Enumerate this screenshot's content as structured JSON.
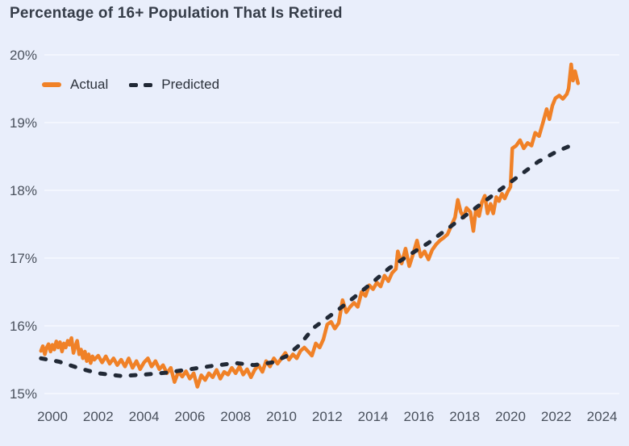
{
  "title": "Percentage of 16+ Population That Is Retired",
  "legend": {
    "actual_label": "Actual",
    "predicted_label": "Predicted"
  },
  "colors": {
    "background": "#e9eefb",
    "gridline": "#f3f6fe",
    "actual_line": "#f08127",
    "predicted_line": "#212936",
    "title_text": "#363d49",
    "tick_text": "#4a515d"
  },
  "chart_data": {
    "type": "line",
    "title": "Percentage of 16+ Population That Is Retired",
    "xlabel": "",
    "ylabel": "",
    "grid": "horizontal-only",
    "legend_position": "top-left-inside",
    "x_ticks": [
      2000,
      2002,
      2004,
      2006,
      2008,
      2010,
      2012,
      2014,
      2016,
      2018,
      2020,
      2022,
      2024
    ],
    "y_ticks": [
      15,
      16,
      17,
      18,
      19,
      20
    ],
    "y_tick_labels": [
      "15%",
      "16%",
      "17%",
      "18%",
      "19%",
      "20%"
    ],
    "xlim": [
      1999.2,
      2024.6
    ],
    "ylim": [
      14.75,
      20.25
    ],
    "series": [
      {
        "name": "Actual",
        "style": "solid",
        "color": "#f08127",
        "points": [
          [
            1999.5,
            15.63
          ],
          [
            1999.58,
            15.7
          ],
          [
            1999.67,
            15.58
          ],
          [
            1999.75,
            15.68
          ],
          [
            1999.83,
            15.73
          ],
          [
            1999.92,
            15.62
          ],
          [
            2000.0,
            15.72
          ],
          [
            2000.08,
            15.65
          ],
          [
            2000.17,
            15.77
          ],
          [
            2000.25,
            15.68
          ],
          [
            2000.33,
            15.76
          ],
          [
            2000.42,
            15.62
          ],
          [
            2000.5,
            15.74
          ],
          [
            2000.58,
            15.68
          ],
          [
            2000.67,
            15.78
          ],
          [
            2000.75,
            15.72
          ],
          [
            2000.83,
            15.82
          ],
          [
            2000.92,
            15.6
          ],
          [
            2001.0,
            15.7
          ],
          [
            2001.08,
            15.78
          ],
          [
            2001.17,
            15.58
          ],
          [
            2001.25,
            15.65
          ],
          [
            2001.33,
            15.52
          ],
          [
            2001.42,
            15.62
          ],
          [
            2001.5,
            15.48
          ],
          [
            2001.58,
            15.58
          ],
          [
            2001.67,
            15.45
          ],
          [
            2001.75,
            15.55
          ],
          [
            2001.83,
            15.5
          ],
          [
            2002.0,
            15.56
          ],
          [
            2002.17,
            15.46
          ],
          [
            2002.33,
            15.55
          ],
          [
            2002.5,
            15.44
          ],
          [
            2002.67,
            15.52
          ],
          [
            2002.83,
            15.42
          ],
          [
            2003.0,
            15.5
          ],
          [
            2003.17,
            15.4
          ],
          [
            2003.33,
            15.52
          ],
          [
            2003.5,
            15.38
          ],
          [
            2003.67,
            15.48
          ],
          [
            2003.83,
            15.36
          ],
          [
            2004.0,
            15.46
          ],
          [
            2004.17,
            15.52
          ],
          [
            2004.33,
            15.4
          ],
          [
            2004.5,
            15.48
          ],
          [
            2004.67,
            15.36
          ],
          [
            2004.83,
            15.42
          ],
          [
            2005.0,
            15.3
          ],
          [
            2005.17,
            15.38
          ],
          [
            2005.33,
            15.17
          ],
          [
            2005.5,
            15.32
          ],
          [
            2005.67,
            15.25
          ],
          [
            2005.83,
            15.33
          ],
          [
            2006.0,
            15.22
          ],
          [
            2006.17,
            15.3
          ],
          [
            2006.33,
            15.1
          ],
          [
            2006.5,
            15.27
          ],
          [
            2006.67,
            15.2
          ],
          [
            2006.83,
            15.3
          ],
          [
            2007.0,
            15.24
          ],
          [
            2007.17,
            15.35
          ],
          [
            2007.33,
            15.22
          ],
          [
            2007.5,
            15.32
          ],
          [
            2007.67,
            15.28
          ],
          [
            2007.83,
            15.38
          ],
          [
            2008.0,
            15.3
          ],
          [
            2008.17,
            15.4
          ],
          [
            2008.33,
            15.28
          ],
          [
            2008.5,
            15.36
          ],
          [
            2008.67,
            15.24
          ],
          [
            2008.83,
            15.35
          ],
          [
            2009.0,
            15.42
          ],
          [
            2009.17,
            15.32
          ],
          [
            2009.33,
            15.48
          ],
          [
            2009.5,
            15.4
          ],
          [
            2009.67,
            15.52
          ],
          [
            2009.83,
            15.44
          ],
          [
            2010.0,
            15.52
          ],
          [
            2010.17,
            15.6
          ],
          [
            2010.33,
            15.5
          ],
          [
            2010.5,
            15.58
          ],
          [
            2010.67,
            15.52
          ],
          [
            2010.83,
            15.63
          ],
          [
            2011.0,
            15.68
          ],
          [
            2011.17,
            15.62
          ],
          [
            2011.33,
            15.56
          ],
          [
            2011.5,
            15.74
          ],
          [
            2011.67,
            15.68
          ],
          [
            2011.83,
            15.8
          ],
          [
            2012.0,
            16.02
          ],
          [
            2012.17,
            16.06
          ],
          [
            2012.33,
            15.96
          ],
          [
            2012.5,
            16.04
          ],
          [
            2012.67,
            16.38
          ],
          [
            2012.83,
            16.2
          ],
          [
            2013.0,
            16.28
          ],
          [
            2013.17,
            16.34
          ],
          [
            2013.33,
            16.28
          ],
          [
            2013.5,
            16.5
          ],
          [
            2013.67,
            16.44
          ],
          [
            2013.83,
            16.6
          ],
          [
            2014.0,
            16.54
          ],
          [
            2014.17,
            16.64
          ],
          [
            2014.33,
            16.58
          ],
          [
            2014.5,
            16.74
          ],
          [
            2014.67,
            16.66
          ],
          [
            2014.83,
            16.78
          ],
          [
            2015.0,
            16.84
          ],
          [
            2015.08,
            17.1
          ],
          [
            2015.25,
            16.92
          ],
          [
            2015.42,
            17.14
          ],
          [
            2015.58,
            16.88
          ],
          [
            2015.75,
            17.06
          ],
          [
            2015.92,
            17.26
          ],
          [
            2016.08,
            17.02
          ],
          [
            2016.25,
            17.1
          ],
          [
            2016.42,
            16.98
          ],
          [
            2016.58,
            17.12
          ],
          [
            2016.75,
            17.2
          ],
          [
            2016.92,
            17.26
          ],
          [
            2017.08,
            17.3
          ],
          [
            2017.25,
            17.35
          ],
          [
            2017.42,
            17.48
          ],
          [
            2017.58,
            17.6
          ],
          [
            2017.7,
            17.86
          ],
          [
            2017.83,
            17.68
          ],
          [
            2017.96,
            17.6
          ],
          [
            2018.08,
            17.74
          ],
          [
            2018.25,
            17.68
          ],
          [
            2018.38,
            17.4
          ],
          [
            2018.5,
            17.74
          ],
          [
            2018.63,
            17.62
          ],
          [
            2018.75,
            17.82
          ],
          [
            2018.88,
            17.92
          ],
          [
            2019.0,
            17.66
          ],
          [
            2019.13,
            17.8
          ],
          [
            2019.25,
            17.66
          ],
          [
            2019.38,
            17.9
          ],
          [
            2019.5,
            17.84
          ],
          [
            2019.63,
            17.95
          ],
          [
            2019.75,
            17.88
          ],
          [
            2019.88,
            17.98
          ],
          [
            2020.0,
            18.05
          ],
          [
            2020.08,
            18.62
          ],
          [
            2020.25,
            18.66
          ],
          [
            2020.42,
            18.74
          ],
          [
            2020.58,
            18.62
          ],
          [
            2020.75,
            18.7
          ],
          [
            2020.92,
            18.66
          ],
          [
            2021.08,
            18.85
          ],
          [
            2021.25,
            18.8
          ],
          [
            2021.42,
            19.0
          ],
          [
            2021.58,
            19.2
          ],
          [
            2021.7,
            19.05
          ],
          [
            2021.83,
            19.25
          ],
          [
            2021.96,
            19.36
          ],
          [
            2022.13,
            19.4
          ],
          [
            2022.29,
            19.35
          ],
          [
            2022.46,
            19.42
          ],
          [
            2022.54,
            19.5
          ],
          [
            2022.65,
            19.86
          ],
          [
            2022.73,
            19.62
          ],
          [
            2022.82,
            19.76
          ],
          [
            2022.95,
            19.58
          ]
        ]
      },
      {
        "name": "Predicted",
        "style": "dashed",
        "color": "#212936",
        "points": [
          [
            1999.5,
            15.52
          ],
          [
            2000.3,
            15.47
          ],
          [
            2001.2,
            15.37
          ],
          [
            2002.0,
            15.3
          ],
          [
            2003.0,
            15.26
          ],
          [
            2004.0,
            15.28
          ],
          [
            2005.0,
            15.31
          ],
          [
            2006.0,
            15.36
          ],
          [
            2007.0,
            15.41
          ],
          [
            2008.0,
            15.45
          ],
          [
            2008.8,
            15.42
          ],
          [
            2009.6,
            15.46
          ],
          [
            2010.2,
            15.55
          ],
          [
            2010.8,
            15.72
          ],
          [
            2011.4,
            15.97
          ],
          [
            2012.3,
            16.19
          ],
          [
            2013.1,
            16.4
          ],
          [
            2013.9,
            16.62
          ],
          [
            2014.7,
            16.85
          ],
          [
            2015.6,
            17.05
          ],
          [
            2016.4,
            17.22
          ],
          [
            2017.2,
            17.42
          ],
          [
            2018.0,
            17.62
          ],
          [
            2018.8,
            17.82
          ],
          [
            2019.6,
            18.02
          ],
          [
            2020.4,
            18.22
          ],
          [
            2021.2,
            18.42
          ],
          [
            2022.0,
            18.57
          ],
          [
            2022.9,
            18.7
          ]
        ]
      }
    ]
  }
}
